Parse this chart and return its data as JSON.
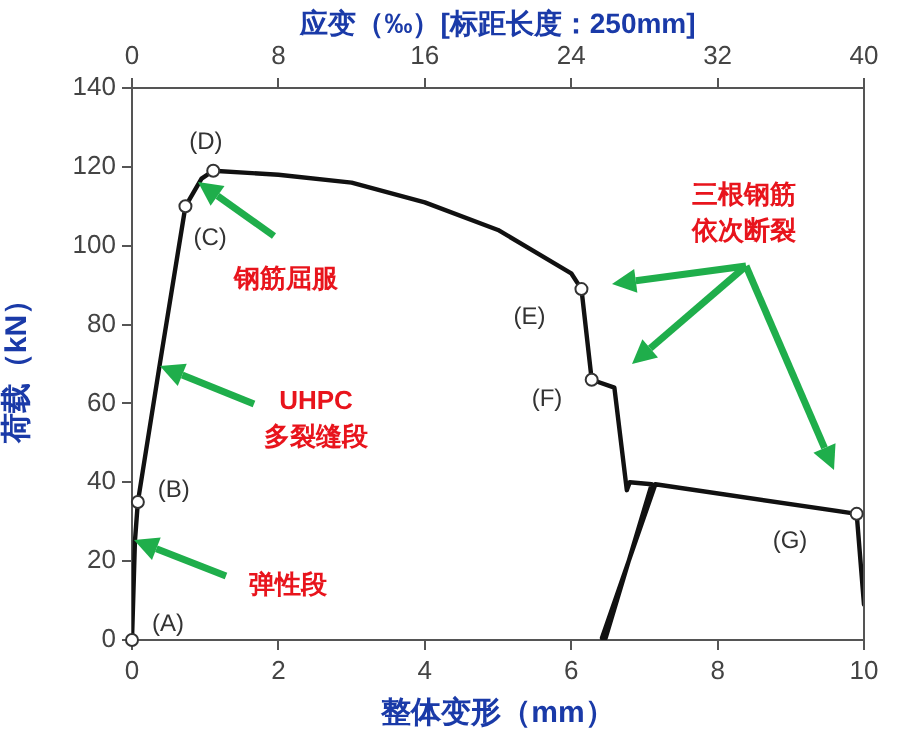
{
  "chart_data": {
    "type": "line",
    "xlabel": "整体变形（mm）",
    "ylabel": "荷载（kN）",
    "x2label": "应变（‰）[标距长度：250mm]",
    "xlim": [
      0,
      10
    ],
    "xticks": [
      0,
      2,
      4,
      6,
      8,
      10
    ],
    "ylim": [
      0,
      140
    ],
    "yticks": [
      0,
      20,
      40,
      60,
      80,
      100,
      120,
      140
    ],
    "x2lim": [
      0,
      40
    ],
    "x2ticks": [
      0,
      8,
      16,
      24,
      32,
      40
    ],
    "series": [
      {
        "color": "#111111",
        "x": [
          0,
          0.04,
          0.08,
          0.38,
          0.73,
          0.95,
          1.11,
          2,
          3,
          4,
          5,
          6,
          6.14,
          6.28,
          6.59,
          6.76,
          6.8,
          7.1,
          6.47,
          6.42,
          7.15,
          9.9,
          10
        ],
        "values": [
          0,
          25,
          35,
          70,
          110,
          117,
          119,
          118,
          116,
          111,
          104,
          93,
          89,
          66,
          64,
          38,
          40,
          39.5,
          0.5,
          0.5,
          39.5,
          32,
          9
        ]
      }
    ],
    "marker": "none",
    "line_style": "solid",
    "grid": false,
    "legend": false,
    "annotations": [
      {
        "text": "(A)",
        "x": 0,
        "y": 0
      },
      {
        "text": "(B)",
        "x": 0.08,
        "y": 35
      },
      {
        "text": "(C)",
        "x": 0.73,
        "y": 110
      },
      {
        "text": "(D)",
        "x": 1.11,
        "y": 119
      },
      {
        "text": "(E)",
        "x": 6.14,
        "y": 89
      },
      {
        "text": "(F)",
        "x": 6.28,
        "y": 66
      },
      {
        "text": "(G)",
        "x": 9.9,
        "y": 32
      },
      "钢筋屈服",
      "UHPC多裂缝段",
      "弹性段",
      "三根钢筋依次断裂"
    ]
  }
}
